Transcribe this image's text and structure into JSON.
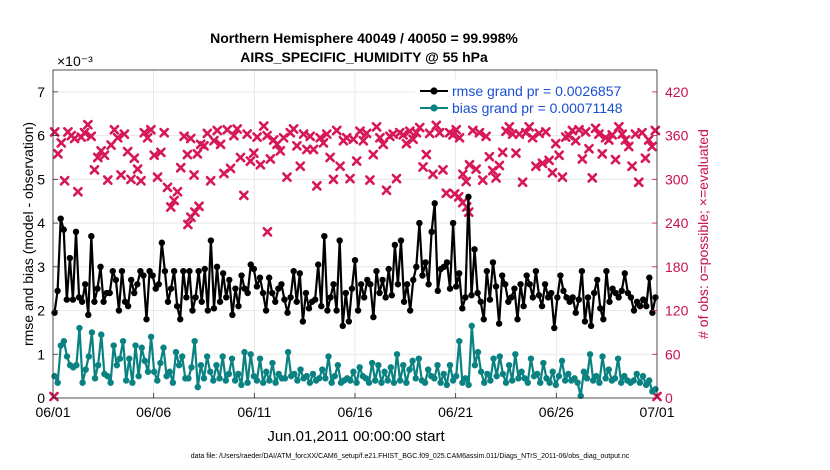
{
  "chart_data": {
    "type": "line",
    "title": "Northern Hemisphere 40049 / 40050 = 99.998%",
    "subtitle": "AIRS_SPECIFIC_HUMIDITY @ 55 hPa",
    "xlabel": "Jun.01,2011 00:00:00 start",
    "ylabel": "rmse and bias (model - observation)",
    "y2label": "# of obs: o=possible; ×=evaluated",
    "y_exponent_label": "×10⁻³",
    "footnote": "data file: /Users/raeder/DAI/ATM_forcXX/CAM6_setup/f.e21.FHIST_BGC.f09_025.CAM6assim.011/Diags_NTrS_2011-06/obs_diag_output.nc",
    "xlim": [
      0,
      30
    ],
    "ylim": [
      0,
      7.5
    ],
    "y2lim": [
      0,
      450
    ],
    "x_tick_values": [
      0,
      5,
      10,
      15,
      20,
      25,
      30
    ],
    "x_tick_labels": [
      "06/01",
      "06/06",
      "06/11",
      "06/16",
      "06/21",
      "06/26",
      "07/01"
    ],
    "y_tick_values": [
      0,
      1,
      2,
      3,
      4,
      5,
      6,
      7
    ],
    "y_tick_labels": [
      "0",
      "1",
      "2",
      "3",
      "4",
      "5",
      "6",
      "7"
    ],
    "y2_tick_values": [
      0,
      60,
      120,
      180,
      240,
      300,
      360,
      420
    ],
    "y2_tick_labels": [
      "0",
      "60",
      "120",
      "180",
      "240",
      "300",
      "360",
      "420"
    ],
    "grid": true,
    "legend_position": "top-right",
    "colors": {
      "rmse": "#000000",
      "bias": "#0a8282",
      "obs": "#d6185a",
      "axis_right": "#c8104e",
      "legend_text": "#1a4fd1"
    },
    "series": [
      {
        "name": "rmse grand pr = 0.0026857",
        "values": [
          1.95,
          2.45,
          4.1,
          3.85,
          2.25,
          3.2,
          2.25,
          3.8,
          2.3,
          2.2,
          2.6,
          1.9,
          3.7,
          2.2,
          2.5,
          3.0,
          2.2,
          2.4,
          2.4,
          2.9,
          2.7,
          2.0,
          2.9,
          2.2,
          2.1,
          2.7,
          2.4,
          2.6,
          2.9,
          2.8,
          1.8,
          2.9,
          2.8,
          2.5,
          2.6,
          3.55,
          2.9,
          2.2,
          2.5,
          2.9,
          2.1,
          1.8,
          2.9,
          2.3,
          2.9,
          2.0,
          2.3,
          2.9,
          2.2,
          2.95,
          2.0,
          3.6,
          2.05,
          3.0,
          2.2,
          2.85,
          2.3,
          2.7,
          1.9,
          2.5,
          2.1,
          2.8,
          2.5,
          2.4,
          3.05,
          2.95,
          2.55,
          2.75,
          2.4,
          2.0,
          2.75,
          2.4,
          2.2,
          2.5,
          2.6,
          2.25,
          1.95,
          2.3,
          2.9,
          2.2,
          2.85,
          1.75,
          2.4,
          2.05,
          2.2,
          2.25,
          3.05,
          2.1,
          3.7,
          2.0,
          2.3,
          2.6,
          2.0,
          3.6,
          1.65,
          2.4,
          1.75,
          2.5,
          3.15,
          2.0,
          2.6,
          2.3,
          2.7,
          2.6,
          1.85,
          2.9,
          2.4,
          2.7,
          2.3,
          2.95,
          2.35,
          3.5,
          2.6,
          3.6,
          2.2,
          2.6,
          2.0,
          2.7,
          3.0,
          4.0,
          2.8,
          3.1,
          2.6,
          3.8,
          4.45,
          2.45,
          2.95,
          3.0,
          3.1,
          2.5,
          4.0,
          2.55,
          2.85,
          2.05,
          2.3,
          4.6,
          2.35,
          3.4,
          2.4,
          2.2,
          1.8,
          2.9,
          2.25,
          3.1,
          2.55,
          1.7,
          2.8,
          2.6,
          2.2,
          2.3,
          2.5,
          1.8,
          2.6,
          2.1,
          2.8,
          2.6,
          2.3,
          2.9,
          2.35,
          2.1,
          2.6,
          2.3,
          2.4,
          1.6,
          2.3,
          2.8,
          2.45,
          2.3,
          2.2,
          2.3,
          1.95,
          2.25,
          2.9,
          1.75,
          2.3,
          1.65,
          2.4,
          2.7,
          2.05,
          1.8,
          2.9,
          2.2,
          2.5,
          2.4,
          2.3,
          2.45,
          2.85,
          2.4,
          2.3,
          2.0,
          2.2,
          2.1,
          2.25,
          2.1,
          2.75,
          1.95,
          2.3
        ]
      },
      {
        "name": "bias grand pr = 0.00071148",
        "values": [
          0.5,
          0.35,
          1.2,
          1.3,
          0.95,
          0.75,
          0.7,
          0.75,
          1.6,
          0.35,
          0.65,
          0.95,
          1.5,
          0.45,
          0.75,
          1.45,
          0.55,
          0.5,
          0.35,
          1.2,
          0.75,
          0.9,
          1.3,
          0.4,
          0.9,
          0.35,
          1.2,
          0.5,
          1.15,
          0.85,
          0.6,
          1.4,
          0.6,
          0.4,
          0.8,
          1.15,
          0.5,
          0.6,
          0.35,
          1.05,
          0.75,
          0.95,
          0.45,
          0.45,
          0.7,
          1.3,
          0.25,
          0.75,
          0.45,
          0.95,
          0.6,
          0.4,
          0.75,
          0.45,
          0.95,
          0.4,
          0.55,
          0.9,
          0.4,
          0.55,
          0.3,
          1.05,
          0.35,
          1.0,
          0.5,
          0.4,
          0.9,
          0.35,
          0.6,
          0.4,
          0.8,
          0.35,
          0.55,
          0.45,
          0.45,
          1.05,
          0.5,
          0.55,
          0.4,
          0.65,
          0.45,
          0.5,
          0.35,
          0.55,
          0.4,
          0.45,
          0.65,
          0.45,
          0.95,
          0.35,
          0.5,
          0.75,
          0.35,
          0.4,
          0.45,
          0.4,
          0.6,
          0.35,
          0.7,
          0.5,
          0.45,
          0.35,
          0.8,
          0.4,
          0.75,
          0.35,
          0.6,
          0.4,
          0.7,
          0.35,
          1.0,
          0.4,
          0.75,
          0.35,
          0.65,
          0.85,
          0.45,
          0.9,
          0.4,
          0.35,
          0.65,
          0.5,
          0.45,
          0.75,
          0.35,
          0.55,
          0.3,
          0.75,
          0.4,
          0.5,
          1.3,
          0.35,
          0.45,
          0.3,
          1.65,
          0.75,
          1.05,
          0.6,
          0.35,
          0.55,
          0.4,
          0.9,
          0.5,
          0.95,
          0.55,
          0.35,
          0.75,
          0.4,
          1.0,
          0.45,
          0.6,
          0.45,
          0.35,
          0.9,
          0.5,
          0.55,
          0.35,
          0.8,
          0.45,
          0.35,
          0.6,
          0.3,
          0.5,
          0.85,
          0.4,
          0.55,
          0.4,
          0.45,
          0.35,
          0.05,
          0.6,
          0.45,
          1.0,
          0.4,
          0.5,
          0.35,
          0.95,
          0.45,
          0.65,
          0.4,
          0.45,
          0.9,
          0.35,
          0.5,
          0.4,
          0.35,
          0.4,
          0.55,
          0.35,
          0.5,
          0.3,
          0.4,
          0.15,
          0.2
        ]
      },
      {
        "name": "# of obs",
        "marker": "x",
        "values": [
          365,
          335,
          350,
          298,
          365,
          360,
          356,
          283,
          358,
          364,
          375,
          359,
          313,
          330,
          339,
          333,
          299,
          347,
          368,
          357,
          306,
          362,
          338,
          300,
          329,
          314,
          298,
          364,
          357,
          368,
          333,
          303,
          337,
          364,
          289,
          262,
          271,
          283,
          316,
          359,
          334,
          356,
          306,
          335,
          348,
          346,
          363,
          298,
          353,
          367,
          348,
          308,
          368,
          315,
          360,
          369,
          330,
          278,
          362,
          325,
          336,
          358,
          320,
          373,
          360,
          328,
          354,
          348,
          339,
          357,
          303,
          364,
          369,
          346,
          318,
          362,
          341,
          359,
          341,
          291,
          357,
          350,
          362,
          330,
          300,
          367,
          318,
          353,
          357,
          301,
          355,
          325,
          366,
          353,
          363,
          299,
          334,
          372,
          357,
          348,
          285,
          359,
          362,
          301,
          364,
          361,
          349,
          366,
          355,
          364,
          371,
          317,
          334,
          363,
          307,
          374,
          364,
          313,
          281,
          364,
          361,
          368,
          357,
          307,
          297,
          320,
          367,
          314,
          364,
          299,
          359,
          331,
          312,
          302,
          319,
          337,
          366,
          372,
          362,
          336,
          362,
          296,
          364,
          372,
          357,
          318,
          363,
          322,
          365,
          326,
          309,
          349,
          333,
          303,
          358,
          360,
          367,
          353,
          368,
          328,
          365,
          342,
          302,
          370,
          362,
          335,
          357,
          354,
          361,
          327,
          372,
          362,
          354,
          345,
          318,
          362,
          296,
          364,
          329,
          354,
          345,
          367
        ]
      },
      {
        "name": "# of obs (outliers)",
        "marker": "x",
        "points": [
          [
            6.7,
            238
          ],
          [
            6.85,
            248
          ],
          [
            7.05,
            255
          ],
          [
            7.25,
            263
          ],
          [
            10.65,
            228
          ],
          [
            19.95,
            280
          ],
          [
            20.15,
            276
          ],
          [
            20.35,
            268
          ],
          [
            20.55,
            262
          ],
          [
            20.65,
            255
          ],
          [
            0.05,
            2
          ],
          [
            30.0,
            2
          ]
        ]
      }
    ]
  }
}
